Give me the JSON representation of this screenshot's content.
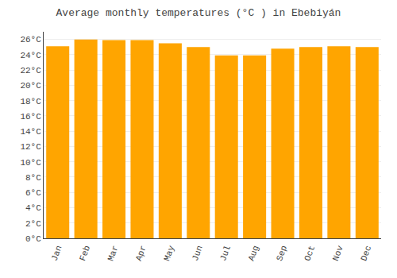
{
  "chart_data": {
    "type": "bar",
    "title": "Average monthly temperatures (°C ) in Ebebiyán",
    "categories": [
      "Jan",
      "Feb",
      "Mar",
      "Apr",
      "May",
      "Jun",
      "Jul",
      "Aug",
      "Sep",
      "Oct",
      "Nov",
      "Dec"
    ],
    "values": [
      25.1,
      26.0,
      25.9,
      25.9,
      25.5,
      25.0,
      23.9,
      23.9,
      24.8,
      25.0,
      25.1,
      25.0
    ],
    "color": "#FFA500",
    "ylim": [
      0,
      27
    ],
    "yticks": [
      {
        "value": 0,
        "label": "0°C"
      },
      {
        "value": 2,
        "label": "2°C"
      },
      {
        "value": 4,
        "label": "4°C"
      },
      {
        "value": 6,
        "label": "6°C"
      },
      {
        "value": 8,
        "label": "8°C"
      },
      {
        "value": 10,
        "label": "10°C"
      },
      {
        "value": 12,
        "label": "12°C"
      },
      {
        "value": 14,
        "label": "14°C"
      },
      {
        "value": 16,
        "label": "16°C"
      },
      {
        "value": 18,
        "label": "18°C"
      },
      {
        "value": 20,
        "label": "20°C"
      },
      {
        "value": 22,
        "label": "22°C"
      },
      {
        "value": 24,
        "label": "24°C"
      },
      {
        "value": 26,
        "label": "26°C"
      }
    ],
    "grid": true
  }
}
